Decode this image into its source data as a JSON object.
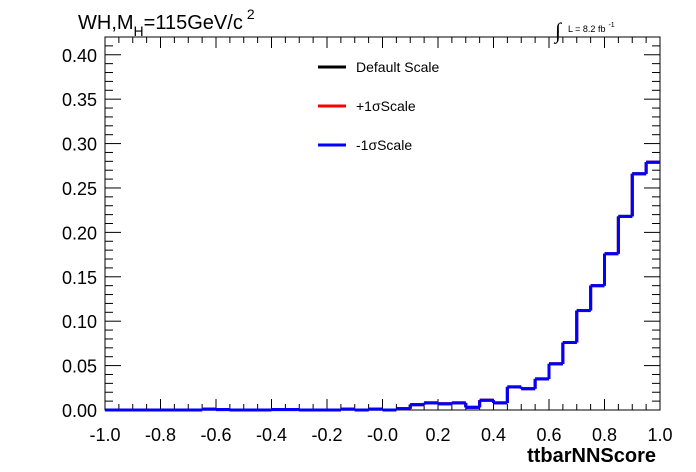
{
  "title": {
    "main": "WH,M",
    "sub": "H",
    "rest": "=115GeV/c",
    "sup": "2"
  },
  "lumi": {
    "integral": "∫",
    "text": "L = 8.2 fb",
    "sup": "-1"
  },
  "chart_data": {
    "type": "line",
    "xlabel": "ttbarNNScore",
    "ylabel": "",
    "xlim": [
      -1.0,
      1.0
    ],
    "ylim": [
      0.0,
      0.42
    ],
    "grid": false,
    "legend_position": "top-center",
    "x_ticks": [
      "-1.0",
      "-0.8",
      "-0.6",
      "-0.4",
      "-0.2",
      "-0.0",
      "0.2",
      "0.4",
      "0.6",
      "0.8",
      "1.0"
    ],
    "y_ticks": [
      "0.00",
      "0.05",
      "0.10",
      "0.15",
      "0.20",
      "0.25",
      "0.30",
      "0.35",
      "0.40"
    ],
    "bin_edges": [
      -1.0,
      -0.95,
      -0.9,
      -0.85,
      -0.8,
      -0.75,
      -0.7,
      -0.65,
      -0.6,
      -0.55,
      -0.5,
      -0.45,
      -0.4,
      -0.35,
      -0.3,
      -0.25,
      -0.2,
      -0.15,
      -0.1,
      -0.05,
      0.0,
      0.05,
      0.1,
      0.15,
      0.2,
      0.25,
      0.3,
      0.35,
      0.4,
      0.45,
      0.5,
      0.55,
      0.6,
      0.65,
      0.7,
      0.75,
      0.8,
      0.85,
      0.9,
      0.95,
      1.0
    ],
    "series": [
      {
        "name": "Default Scale",
        "color": "#000000",
        "values": [
          0.0,
          0.0,
          0.0,
          0.0,
          0.0,
          0.0,
          0.0,
          0.001,
          0.0005,
          0.0,
          0.0,
          0.0,
          0.0005,
          0.0005,
          0.0,
          0.0,
          0.0,
          0.001,
          0.0,
          0.001,
          0.0,
          0.0015,
          0.006,
          0.008,
          0.007,
          0.008,
          0.003,
          0.011,
          0.008,
          0.026,
          0.024,
          0.035,
          0.052,
          0.076,
          0.112,
          0.14,
          0.176,
          0.218,
          0.266,
          0.279
        ]
      },
      {
        "name": "+1σScale",
        "color": "#ff0000",
        "values": [
          0.0,
          0.0,
          0.0,
          0.0,
          0.0,
          0.0,
          0.0,
          0.001,
          0.0005,
          0.0,
          0.0,
          0.0,
          0.0005,
          0.0005,
          0.0,
          0.0,
          0.0,
          0.001,
          0.0,
          0.001,
          0.0,
          0.0015,
          0.006,
          0.008,
          0.007,
          0.008,
          0.003,
          0.011,
          0.008,
          0.026,
          0.024,
          0.035,
          0.052,
          0.076,
          0.112,
          0.14,
          0.176,
          0.218,
          0.266,
          0.279
        ]
      },
      {
        "name": "-1σScale",
        "color": "#0000ff",
        "values": [
          0.0,
          0.0,
          0.0,
          0.0,
          0.0,
          0.0,
          0.0,
          0.001,
          0.0005,
          0.0,
          0.0,
          0.0,
          0.0005,
          0.0005,
          0.0,
          0.0,
          0.0,
          0.001,
          0.0,
          0.001,
          0.0,
          0.0015,
          0.006,
          0.008,
          0.007,
          0.008,
          0.003,
          0.011,
          0.008,
          0.026,
          0.024,
          0.035,
          0.052,
          0.076,
          0.112,
          0.14,
          0.176,
          0.218,
          0.266,
          0.279
        ]
      }
    ]
  }
}
